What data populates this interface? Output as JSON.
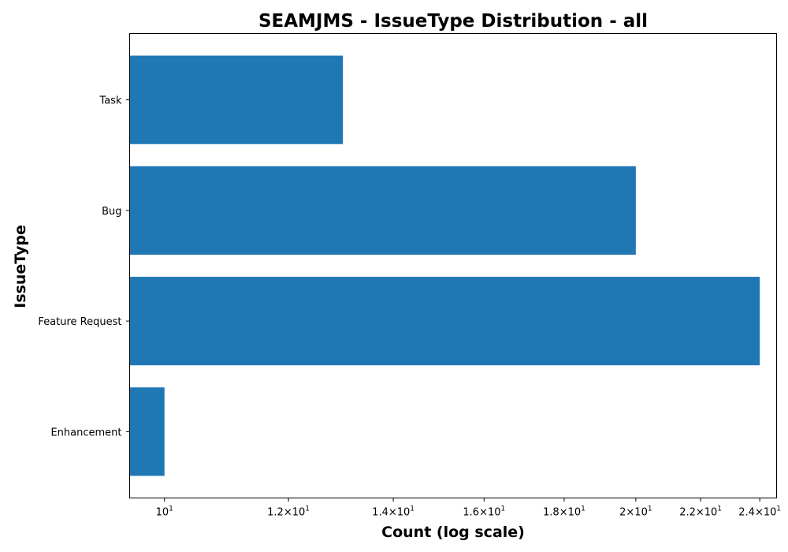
{
  "chart_data": {
    "type": "bar",
    "orientation": "horizontal",
    "title": "SEAMJMS - IssueType Distribution - all",
    "xlabel": "Count (log scale)",
    "ylabel": "IssueType",
    "x_scale": "log",
    "xlim": [
      9.5,
      24.6
    ],
    "grid": false,
    "bar_color": "#1f77b4",
    "categories": [
      "Task",
      "Bug",
      "Feature Request",
      "Enhancement"
    ],
    "values": [
      13,
      20,
      24,
      10
    ],
    "x_ticks": [
      {
        "value": 10,
        "mantissa": "",
        "exponent": "1"
      },
      {
        "value": 12,
        "mantissa": "1.2",
        "exponent": "1"
      },
      {
        "value": 14,
        "mantissa": "1.4",
        "exponent": "1"
      },
      {
        "value": 16,
        "mantissa": "1.6",
        "exponent": "1"
      },
      {
        "value": 18,
        "mantissa": "1.8",
        "exponent": "1"
      },
      {
        "value": 20,
        "mantissa": "2",
        "exponent": "1"
      },
      {
        "value": 22,
        "mantissa": "2.2",
        "exponent": "1"
      },
      {
        "value": 24,
        "mantissa": "2.4",
        "exponent": "1"
      }
    ]
  }
}
